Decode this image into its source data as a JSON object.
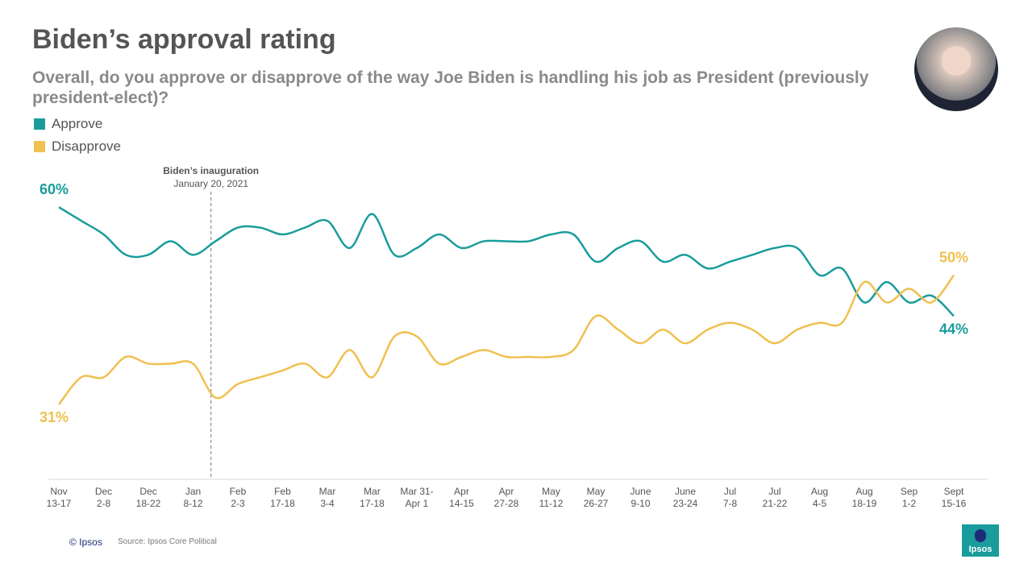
{
  "chart_data": {
    "type": "line",
    "title": "Biden’s approval rating",
    "subtitle": "Overall, do you approve or disapprove of the way Joe Biden is handling his job as President (previously president-elect)?",
    "categories": [
      "Nov\n13-17",
      null,
      "Dec\n2-8",
      null,
      "Dec\n18-22",
      null,
      "Jan\n8-12",
      null,
      "Feb\n2-3",
      null,
      "Feb\n17-18",
      null,
      "Mar\n3-4",
      null,
      "Mar\n17-18",
      null,
      "Mar 31-\nApr 1",
      null,
      "Apr\n14-15",
      null,
      "Apr\n27-28",
      null,
      "May\n11-12",
      null,
      "May\n26-27",
      null,
      "June\n9-10",
      null,
      "June\n23-24",
      null,
      "Jul\n7-8",
      null,
      "Jul\n21-22",
      null,
      "Aug\n4-5",
      null,
      "Aug\n18-19",
      null,
      "Sep\n1-2",
      null,
      "Sept\n15-16"
    ],
    "series": [
      {
        "name": "Approve",
        "color": "#1a9c9c",
        "values": [
          60,
          58,
          56,
          53,
          53,
          55,
          53,
          55,
          57,
          57,
          56,
          57,
          58,
          54,
          59,
          53,
          54,
          56,
          54,
          55,
          55,
          55,
          56,
          56,
          52,
          54,
          55,
          52,
          53,
          51,
          52,
          53,
          54,
          54,
          50,
          51,
          46,
          49,
          46,
          47,
          44
        ],
        "value_labels": [
          "60%",
          null,
          null,
          null,
          null,
          null,
          null,
          null,
          null,
          null,
          null,
          null,
          null,
          null,
          null,
          null,
          null,
          null,
          null,
          null,
          null,
          null,
          null,
          null,
          null,
          null,
          null,
          null,
          null,
          null,
          null,
          null,
          null,
          null,
          null,
          null,
          null,
          null,
          null,
          null,
          "44%"
        ]
      },
      {
        "name": "Disapprove",
        "color": "#f0c050",
        "values": [
          31,
          35,
          35,
          38,
          37,
          37,
          37,
          32,
          34,
          35,
          36,
          37,
          35,
          39,
          35,
          41,
          41,
          37,
          38,
          39,
          38,
          38,
          38,
          39,
          44,
          42,
          40,
          42,
          40,
          42,
          43,
          42,
          40,
          42,
          43,
          43,
          49,
          46,
          48,
          46,
          50
        ],
        "value_labels": [
          "31%",
          null,
          null,
          null,
          null,
          null,
          null,
          null,
          null,
          null,
          null,
          null,
          null,
          null,
          null,
          null,
          null,
          null,
          null,
          null,
          null,
          null,
          null,
          null,
          null,
          null,
          null,
          null,
          null,
          null,
          null,
          null,
          null,
          null,
          null,
          null,
          null,
          null,
          null,
          null,
          "50%"
        ]
      }
    ],
    "ylim": [
      20,
      65
    ],
    "annotation": {
      "title": "Biden’s inauguration",
      "subtitle": "January 20, 2021"
    },
    "source": "Source: Ipsos Core Political",
    "copyright": "© Ipsos",
    "logo": "Ipsos"
  }
}
